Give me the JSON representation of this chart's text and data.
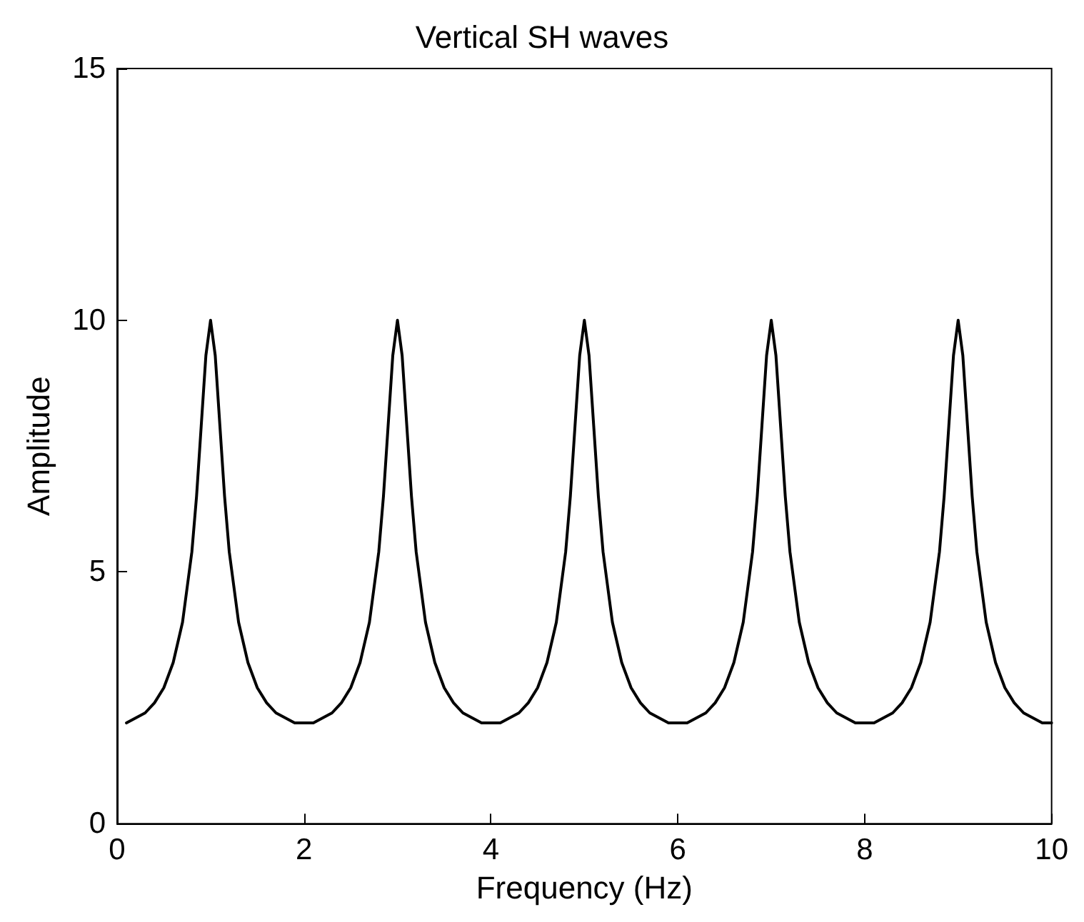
{
  "chart_data": {
    "type": "line",
    "title": "Vertical SH waves",
    "xlabel": "Frequency (Hz)",
    "ylabel": "Amplitude",
    "xlim": [
      0,
      10
    ],
    "xticks": [
      0,
      2,
      4,
      6,
      8,
      10
    ],
    "ylim": [
      0,
      15
    ],
    "yticks": [
      0,
      5,
      10,
      15
    ],
    "grid": false,
    "marker": "none",
    "line_style": "solid",
    "series": [
      {
        "color": "#000000",
        "x": [
          0.1,
          0.2,
          0.3,
          0.4,
          0.5,
          0.6,
          0.7,
          0.8,
          0.85,
          0.9,
          0.95,
          1,
          1.05,
          1.1,
          1.15,
          1.2,
          1.3,
          1.4,
          1.5,
          1.6,
          1.7,
          1.8,
          1.9,
          2,
          2.1,
          2.2,
          2.3,
          2.4,
          2.5,
          2.6,
          2.7,
          2.8,
          2.85,
          2.9,
          2.95,
          3,
          3.05,
          3.1,
          3.15,
          3.2,
          3.3,
          3.4,
          3.5,
          3.6,
          3.7,
          3.8,
          3.9,
          4,
          4.1,
          4.2,
          4.3,
          4.4,
          4.5,
          4.6,
          4.7,
          4.8,
          4.85,
          4.9,
          4.95,
          5,
          5.05,
          5.1,
          5.15,
          5.2,
          5.3,
          5.4,
          5.5,
          5.6,
          5.7,
          5.8,
          5.9,
          6,
          6.1,
          6.2,
          6.3,
          6.4,
          6.5,
          6.6,
          6.7,
          6.8,
          6.85,
          6.9,
          6.95,
          7,
          7.05,
          7.1,
          7.15,
          7.2,
          7.3,
          7.4,
          7.5,
          7.6,
          7.7,
          7.8,
          7.9,
          8,
          8.1,
          8.2,
          8.3,
          8.4,
          8.5,
          8.6,
          8.7,
          8.8,
          8.85,
          8.9,
          8.95,
          9,
          9.05,
          9.1,
          9.15,
          9.2,
          9.3,
          9.4,
          9.5,
          9.6,
          9.7,
          9.8,
          9.9,
          10
        ],
        "values": [
          2.0,
          2.1,
          2.2,
          2.4,
          2.7,
          3.2,
          4.0,
          5.4,
          6.5,
          7.9,
          9.3,
          10,
          9.3,
          7.9,
          6.5,
          5.4,
          4.0,
          3.2,
          2.7,
          2.4,
          2.2,
          2.1,
          2.0,
          2.0,
          2.0,
          2.1,
          2.2,
          2.4,
          2.7,
          3.2,
          4.0,
          5.4,
          6.5,
          7.9,
          9.3,
          10,
          9.3,
          7.9,
          6.5,
          5.4,
          4.0,
          3.2,
          2.7,
          2.4,
          2.2,
          2.1,
          2.0,
          2.0,
          2.0,
          2.1,
          2.2,
          2.4,
          2.7,
          3.2,
          4.0,
          5.4,
          6.5,
          7.9,
          9.3,
          10,
          9.3,
          7.9,
          6.5,
          5.4,
          4.0,
          3.2,
          2.7,
          2.4,
          2.2,
          2.1,
          2.0,
          2.0,
          2.0,
          2.1,
          2.2,
          2.4,
          2.7,
          3.2,
          4.0,
          5.4,
          6.5,
          7.9,
          9.3,
          10,
          9.3,
          7.9,
          6.5,
          5.4,
          4.0,
          3.2,
          2.7,
          2.4,
          2.2,
          2.1,
          2.0,
          2.0,
          2.0,
          2.1,
          2.2,
          2.4,
          2.7,
          3.2,
          4.0,
          5.4,
          6.5,
          7.9,
          9.3,
          10,
          9.3,
          7.9,
          6.5,
          5.4,
          4.0,
          3.2,
          2.7,
          2.4,
          2.2,
          2.1,
          2.0,
          2.0
        ]
      }
    ]
  }
}
